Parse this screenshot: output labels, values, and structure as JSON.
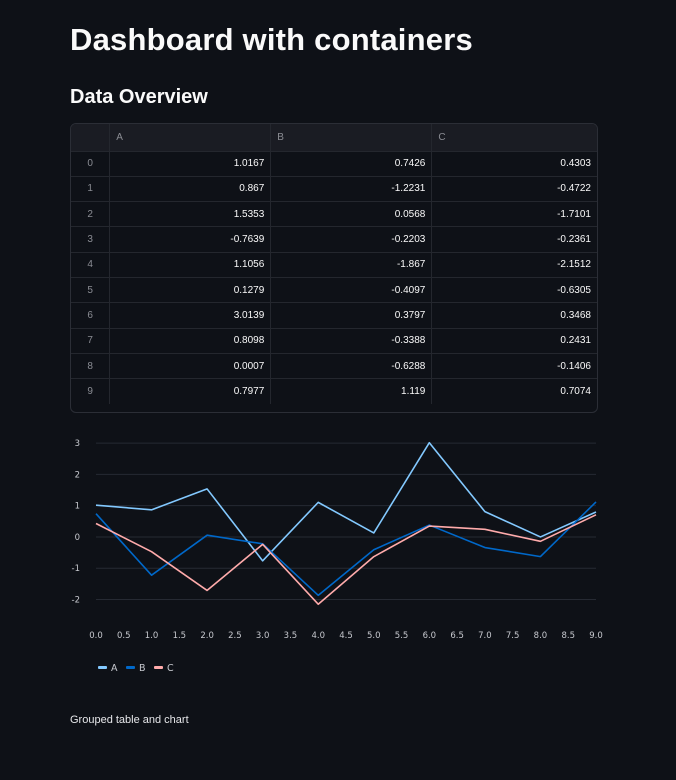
{
  "page": {
    "title": "Dashboard with containers",
    "section_title": "Data Overview",
    "caption": "Grouped table and chart"
  },
  "table": {
    "columns": [
      "A",
      "B",
      "C"
    ],
    "rows": [
      {
        "index": "0",
        "A": "1.0167",
        "B": "0.7426",
        "C": "0.4303"
      },
      {
        "index": "1",
        "A": "0.867",
        "B": "-1.2231",
        "C": "-0.4722"
      },
      {
        "index": "2",
        "A": "1.5353",
        "B": "0.0568",
        "C": "-1.7101"
      },
      {
        "index": "3",
        "A": "-0.7639",
        "B": "-0.2203",
        "C": "-0.2361"
      },
      {
        "index": "4",
        "A": "1.1056",
        "B": "-1.867",
        "C": "-2.1512"
      },
      {
        "index": "5",
        "A": "0.1279",
        "B": "-0.4097",
        "C": "-0.6305"
      },
      {
        "index": "6",
        "A": "3.0139",
        "B": "0.3797",
        "C": "0.3468"
      },
      {
        "index": "7",
        "A": "0.8098",
        "B": "-0.3388",
        "C": "0.2431"
      },
      {
        "index": "8",
        "A": "0.0007",
        "B": "-0.6288",
        "C": "-0.1406"
      },
      {
        "index": "9",
        "A": "0.7977",
        "B": "1.119",
        "C": "0.7074"
      }
    ]
  },
  "chart_data": {
    "type": "line",
    "title": "",
    "xlabel": "",
    "ylabel": "",
    "x": [
      0,
      1,
      2,
      3,
      4,
      5,
      6,
      7,
      8,
      9
    ],
    "xlim": [
      0,
      9
    ],
    "ylim": [
      -2.4,
      3.1
    ],
    "x_ticks": [
      "0.0",
      "0.5",
      "1.0",
      "1.5",
      "2.0",
      "2.5",
      "3.0",
      "3.5",
      "4.0",
      "4.5",
      "5.0",
      "5.5",
      "6.0",
      "6.5",
      "7.0",
      "7.5",
      "8.0",
      "8.5",
      "9.0"
    ],
    "y_ticks": [
      "3",
      "2",
      "1",
      "0",
      "-1",
      "-2"
    ],
    "grid": true,
    "legend_position": "bottom-left",
    "series": [
      {
        "name": "A",
        "color": "#83c9ff",
        "values": [
          1.0167,
          0.867,
          1.5353,
          -0.7639,
          1.1056,
          0.1279,
          3.0139,
          0.8098,
          0.0007,
          0.7977
        ]
      },
      {
        "name": "B",
        "color": "#0068c9",
        "values": [
          0.7426,
          -1.2231,
          0.0568,
          -0.2203,
          -1.867,
          -0.4097,
          0.3797,
          -0.3388,
          -0.6288,
          1.119
        ]
      },
      {
        "name": "C",
        "color": "#ffabab",
        "values": [
          0.4303,
          -0.4722,
          -1.7101,
          -0.2361,
          -2.1512,
          -0.6305,
          0.3468,
          0.2431,
          -0.1406,
          0.7074
        ]
      }
    ]
  }
}
